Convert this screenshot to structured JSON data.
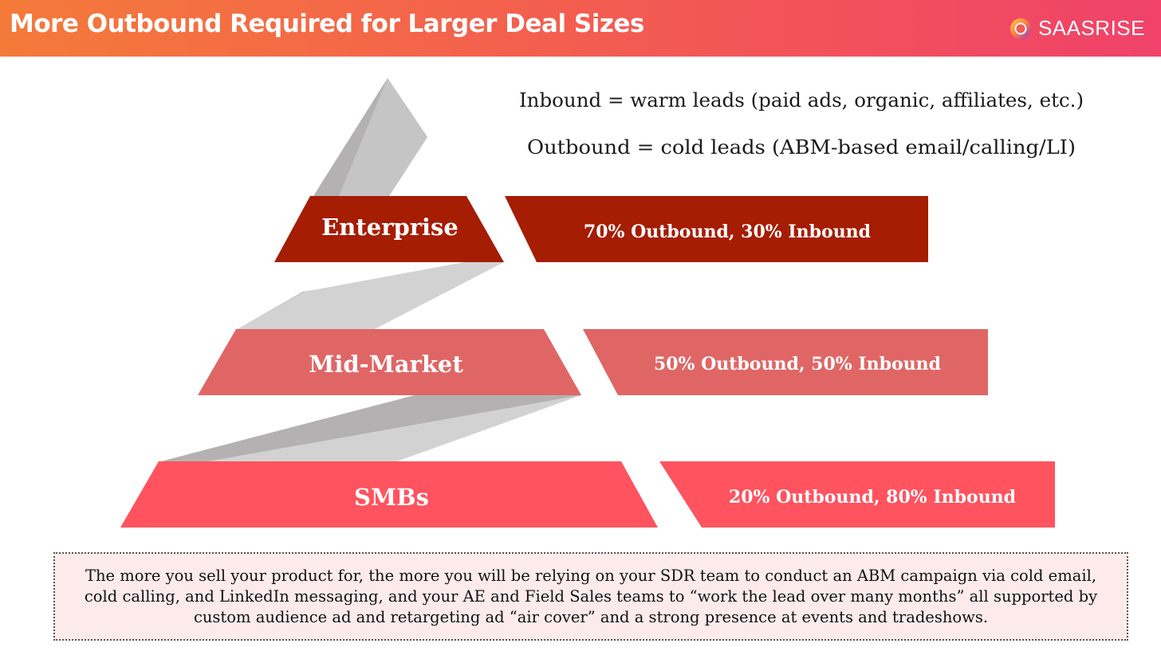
{
  "header": {
    "title": "More Outbound Required for Larger Deal Sizes",
    "brand_name": "SAASRISE",
    "brand_icon": "saasrise-logo-icon"
  },
  "definitions": {
    "inbound": "Inbound = warm leads (paid ads, organic, affiliates, etc.)",
    "outbound": "Outbound = cold leads (ABM-based email/calling/LI)"
  },
  "tiers": [
    {
      "label": "Enterprise",
      "mix": "70% Outbound, 30% Inbound",
      "color": "#a51d03"
    },
    {
      "label": "Mid-Market",
      "mix": "50% Outbound, 50% Inbound",
      "color": "#e06666"
    },
    {
      "label": "SMBs",
      "mix": "20% Outbound, 80% Inbound",
      "color": "#ff535f"
    }
  ],
  "footer": {
    "text": "The more you sell your product for, the more you will be relying on your SDR team to conduct an ABM campaign via cold email, cold calling, and LinkedIn messaging, and your AE and Field Sales teams to “work the lead over many months” all supported by custom audience ad and retargeting ad “air cover” and a strong presence at events and tradeshows."
  },
  "colors": {
    "ribbon_dark": "#b3b1b1",
    "ribbon_light": "#d3d2d3",
    "header_start": "#f47a3a",
    "header_end": "#f0426a"
  }
}
